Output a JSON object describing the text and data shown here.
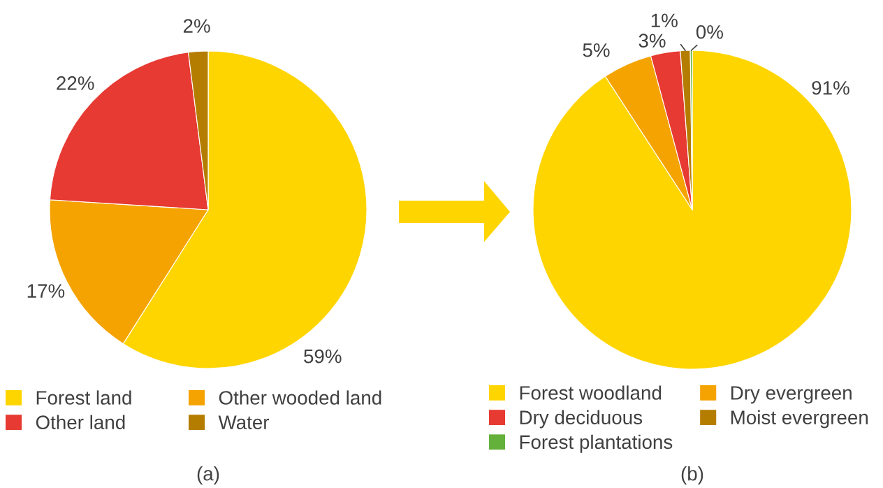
{
  "chart_data": [
    {
      "type": "pie",
      "categories": [
        "Forest land",
        "Other wooded land",
        "Other land",
        "Water"
      ],
      "values": [
        59,
        17,
        22,
        2
      ],
      "colors": [
        "#ffd500",
        "#f5a300",
        "#e63a32",
        "#b57d00"
      ],
      "value_labels": [
        "59%",
        "17%",
        "22%",
        "2%"
      ],
      "legend": "bottom",
      "annotations": [
        "(a)"
      ]
    },
    {
      "type": "pie",
      "categories": [
        "Forest woodland",
        "Dry evergreen",
        "Dry deciduous",
        "Moist evergreen",
        "Forest plantations"
      ],
      "values": [
        90.8,
        5,
        3,
        1,
        0.2
      ],
      "colors": [
        "#ffd500",
        "#f5a300",
        "#e63a32",
        "#b57d00",
        "#63b13b"
      ],
      "value_labels": [
        "91%",
        "5%",
        "3%",
        "1%",
        "0%"
      ],
      "legend": "bottom",
      "annotations": [
        "(b)"
      ]
    }
  ]
}
